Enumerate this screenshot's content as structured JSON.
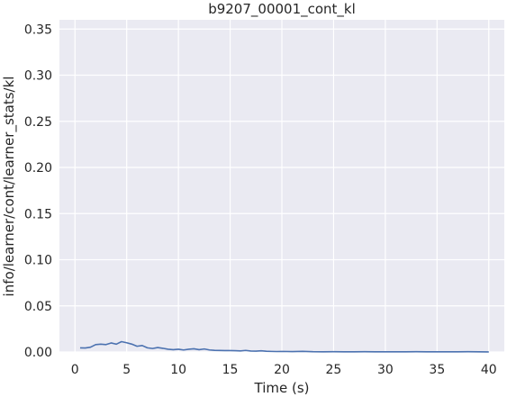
{
  "chart_data": {
    "type": "line",
    "title": "b9207_00001_cont_kl",
    "xlabel": "Time (s)",
    "ylabel": "info/learner/cont/learner_stats/kl",
    "xlim": [
      -1.5,
      41.5
    ],
    "ylim": [
      0,
      0.36
    ],
    "xticks": [
      0,
      5,
      10,
      15,
      20,
      25,
      30,
      35,
      40
    ],
    "xtick_labels": [
      "0",
      "5",
      "10",
      "15",
      "20",
      "25",
      "30",
      "35",
      "40"
    ],
    "yticks": [
      0.0,
      0.05,
      0.1,
      0.15,
      0.2,
      0.25,
      0.3,
      0.35
    ],
    "ytick_labels": [
      "0.00",
      "0.05",
      "0.10",
      "0.15",
      "0.20",
      "0.25",
      "0.30",
      "0.35"
    ],
    "grid": true,
    "colors": {
      "background": "#eaeaf2",
      "grid": "#ffffff",
      "line": "#4c72b0",
      "text": "#262626"
    },
    "series": [
      {
        "x": [
          0.5,
          1.0,
          1.5,
          2.0,
          2.5,
          3.0,
          3.5,
          4.0,
          4.5,
          5.0,
          5.5,
          6.0,
          6.5,
          7.0,
          7.5,
          8.0,
          8.5,
          9.0,
          9.5,
          10.0,
          10.5,
          11.0,
          11.5,
          12.0,
          12.5,
          13.0,
          13.5,
          14.0,
          14.5,
          15.0,
          15.5,
          16.0,
          16.5,
          17.0,
          17.5,
          18.0,
          18.5,
          19.0,
          19.5,
          20.0,
          21.0,
          22.0,
          23.0,
          24.0,
          25.0,
          26.0,
          27.0,
          28.0,
          29.0,
          30.0,
          31.0,
          32.0,
          33.0,
          34.0,
          35.0,
          36.0,
          37.0,
          38.0,
          39.0,
          40.0
        ],
        "values": [
          0.0045,
          0.0043,
          0.0052,
          0.008,
          0.0085,
          0.008,
          0.0098,
          0.0085,
          0.0112,
          0.01,
          0.0085,
          0.0062,
          0.007,
          0.0045,
          0.0038,
          0.0048,
          0.004,
          0.003,
          0.0025,
          0.003,
          0.0022,
          0.003,
          0.0035,
          0.0025,
          0.0033,
          0.0022,
          0.0018,
          0.0016,
          0.0015,
          0.0015,
          0.0014,
          0.0012,
          0.0017,
          0.001,
          0.0009,
          0.0013,
          0.0008,
          0.0006,
          0.0005,
          0.0006,
          0.0004,
          0.0007,
          0.0003,
          0.0002,
          0.0003,
          0.0002,
          0.0002,
          0.0003,
          0.0002,
          0.0002,
          0.0002,
          0.0002,
          0.0003,
          0.0002,
          0.0002,
          0.0002,
          0.0002,
          0.0003,
          0.0002,
          0.0001
        ]
      }
    ]
  }
}
